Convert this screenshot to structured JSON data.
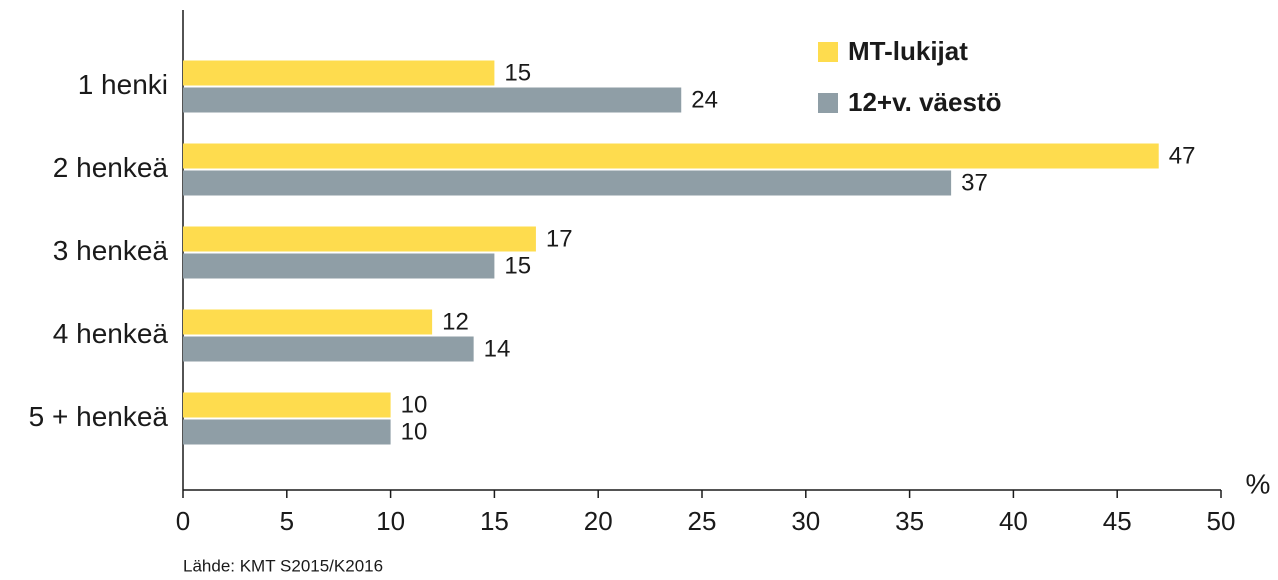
{
  "chart_data": {
    "type": "bar",
    "orientation": "horizontal",
    "categories": [
      "1 henki",
      "2 henkeä",
      "3 henkeä",
      "4 henkeä",
      "5 + henkeä"
    ],
    "series": [
      {
        "name": "MT-lukijat",
        "color": "#fedc4e",
        "values": [
          15,
          47,
          17,
          12,
          10
        ]
      },
      {
        "name": "12+v. väestö",
        "color": "#8f9ea6",
        "values": [
          24,
          37,
          15,
          14,
          10
        ]
      }
    ],
    "xlim": [
      0,
      50
    ],
    "xticks": [
      0,
      5,
      10,
      15,
      20,
      25,
      30,
      35,
      40,
      45,
      50
    ],
    "xlabel": "%",
    "source": "Lähde: KMT S2015/K2016",
    "legend": "upper right"
  }
}
